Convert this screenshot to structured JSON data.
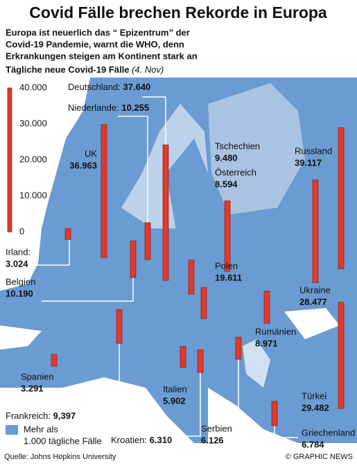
{
  "title": "Covid Fälle brechen Rekorde in Europa",
  "subtitle": [
    "Europa ist neuerlich das “ Epizentrum” der",
    "Covid-19 Pandemie, warnt die WHO, denn",
    "Erkrankungen steigen am Kontinent stark an"
  ],
  "chart_data": {
    "type": "bar",
    "title": "Tägliche neue Covid-19 Fälle",
    "subtitle": "(4. Nov)",
    "ylim": [
      0,
      40000
    ],
    "yticks": [
      0,
      {
        "value": 10000,
        "label": "10.000"
      },
      {
        "value": 20000,
        "label": "20.000"
      },
      {
        "value": 30000,
        "label": "30.000"
      },
      {
        "value": 40000,
        "label": "40.000"
      }
    ],
    "color": "#e2392c",
    "categories": [
      "Deutschland:",
      "Niederlande:",
      "UK",
      "Irland:",
      "Belgien",
      "Tschechien",
      "Österreich",
      "Polen",
      "Russland",
      "Ukraine",
      "Türkei",
      "Rumänien",
      "Griechenland",
      "Serbien",
      "Kroatien:",
      "Italien",
      "Frankreich:",
      "Spanien"
    ],
    "values": [
      37640,
      10255,
      36963,
      3024,
      10190,
      9480,
      8594,
      19611,
      39117,
      28477,
      29482,
      8971,
      6784,
      6126,
      6310,
      5902,
      9397,
      3291
    ],
    "value_labels": [
      "37.640",
      "10.255",
      "36.963",
      "3.024",
      "10.190",
      "9.480",
      "8.594",
      "19.611",
      "39.117",
      "28.477",
      "29.482",
      "8.971",
      "6.784",
      "6.126",
      "6.310",
      "5.902",
      "9,397",
      "3.291"
    ],
    "legend": [
      "Mehr als",
      "1.000 tägliche Fälle"
    ]
  },
  "footer": {
    "source": "Quelle: Johns Hopkins University",
    "credit": "© GRAPHIC NEWS"
  }
}
